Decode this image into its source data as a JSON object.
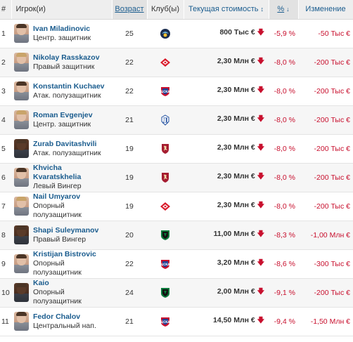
{
  "headers": {
    "num": "#",
    "player": "Игрок(и)",
    "age": "Возраст",
    "club": "Клуб(ы)",
    "value": "Текущая стоимость",
    "pct": "%",
    "change": "Изменение"
  },
  "icons": {
    "value_sort": "sort-updown-icon",
    "pct_sort": "sort-down-icon",
    "value_change": "arrow-down-icon"
  },
  "colors": {
    "link": "#1a5c8e",
    "negative": "#c8102e",
    "header_bg": "#eeeeee"
  },
  "rows": [
    {
      "num": "1",
      "name": "Ivan Miladinovic",
      "position": "Центр. защитник",
      "age": "25",
      "club_logo": "sochi-logo-icon",
      "value": "800 Тыс €",
      "pct": "-5,9 %",
      "change": "-50 Тыс €"
    },
    {
      "num": "2",
      "name": "Nikolay Rasskazov",
      "position": "Правый защитник",
      "age": "22",
      "club_logo": "spartak-logo-icon",
      "value": "2,30 Млн €",
      "pct": "-8,0 %",
      "change": "-200 Тыс €"
    },
    {
      "num": "3",
      "name": "Konstantin Kuchaev",
      "position": "Атак. полузащитник",
      "age": "22",
      "club_logo": "cska-logo-icon",
      "value": "2,30 Млн €",
      "pct": "-8,0 %",
      "change": "-200 Тыс €"
    },
    {
      "num": "4",
      "name": "Roman Evgenjev",
      "position": "Центр. защитник",
      "age": "21",
      "club_logo": "dynamo-logo-icon",
      "value": "2,30 Млн €",
      "pct": "-8,0 %",
      "change": "-200 Тыс €"
    },
    {
      "num": "5",
      "name": "Zurab Davitashvili",
      "position": "Атак. полузащитник",
      "age": "19",
      "club_logo": "rubin-logo-icon",
      "value": "2,30 Млн €",
      "pct": "-8,0 %",
      "change": "-200 Тыс €"
    },
    {
      "num": "6",
      "name": "Khvicha Kvaratskhelia",
      "position": "Левый Вингер",
      "age": "19",
      "club_logo": "rubin-logo-icon",
      "value": "2,30 Млн €",
      "pct": "-8,0 %",
      "change": "-200 Тыс €"
    },
    {
      "num": "7",
      "name": "Nail Umyarov",
      "position": "Опорный полузащитник",
      "age": "19",
      "club_logo": "spartak-logo-icon",
      "value": "2,30 Млн €",
      "pct": "-8,0 %",
      "change": "-200 Тыс €"
    },
    {
      "num": "8",
      "name": "Shapi Suleymanov",
      "position": "Правый Вингер",
      "age": "20",
      "club_logo": "krasnodar-logo-icon",
      "value": "11,00 Млн €",
      "pct": "-8,3 %",
      "change": "-1,00 Млн €"
    },
    {
      "num": "9",
      "name": "Kristijan Bistrovic",
      "position": "Опорный полузащитник",
      "age": "22",
      "club_logo": "cska-logo-icon",
      "value": "3,20 Млн €",
      "pct": "-8,6 %",
      "change": "-300 Тыс €"
    },
    {
      "num": "10",
      "name": "Kaio",
      "position": "Опорный полузащитник",
      "age": "24",
      "club_logo": "krasnodar-logo-icon",
      "value": "2,00 Млн €",
      "pct": "-9,1 %",
      "change": "-200 Тыс €"
    },
    {
      "num": "11",
      "name": "Fedor Chalov",
      "position": "Центральный нап.",
      "age": "21",
      "club_logo": "cska-logo-icon",
      "value": "14,50 Млн €",
      "pct": "-9,4 %",
      "change": "-1,50 Млн €"
    }
  ]
}
